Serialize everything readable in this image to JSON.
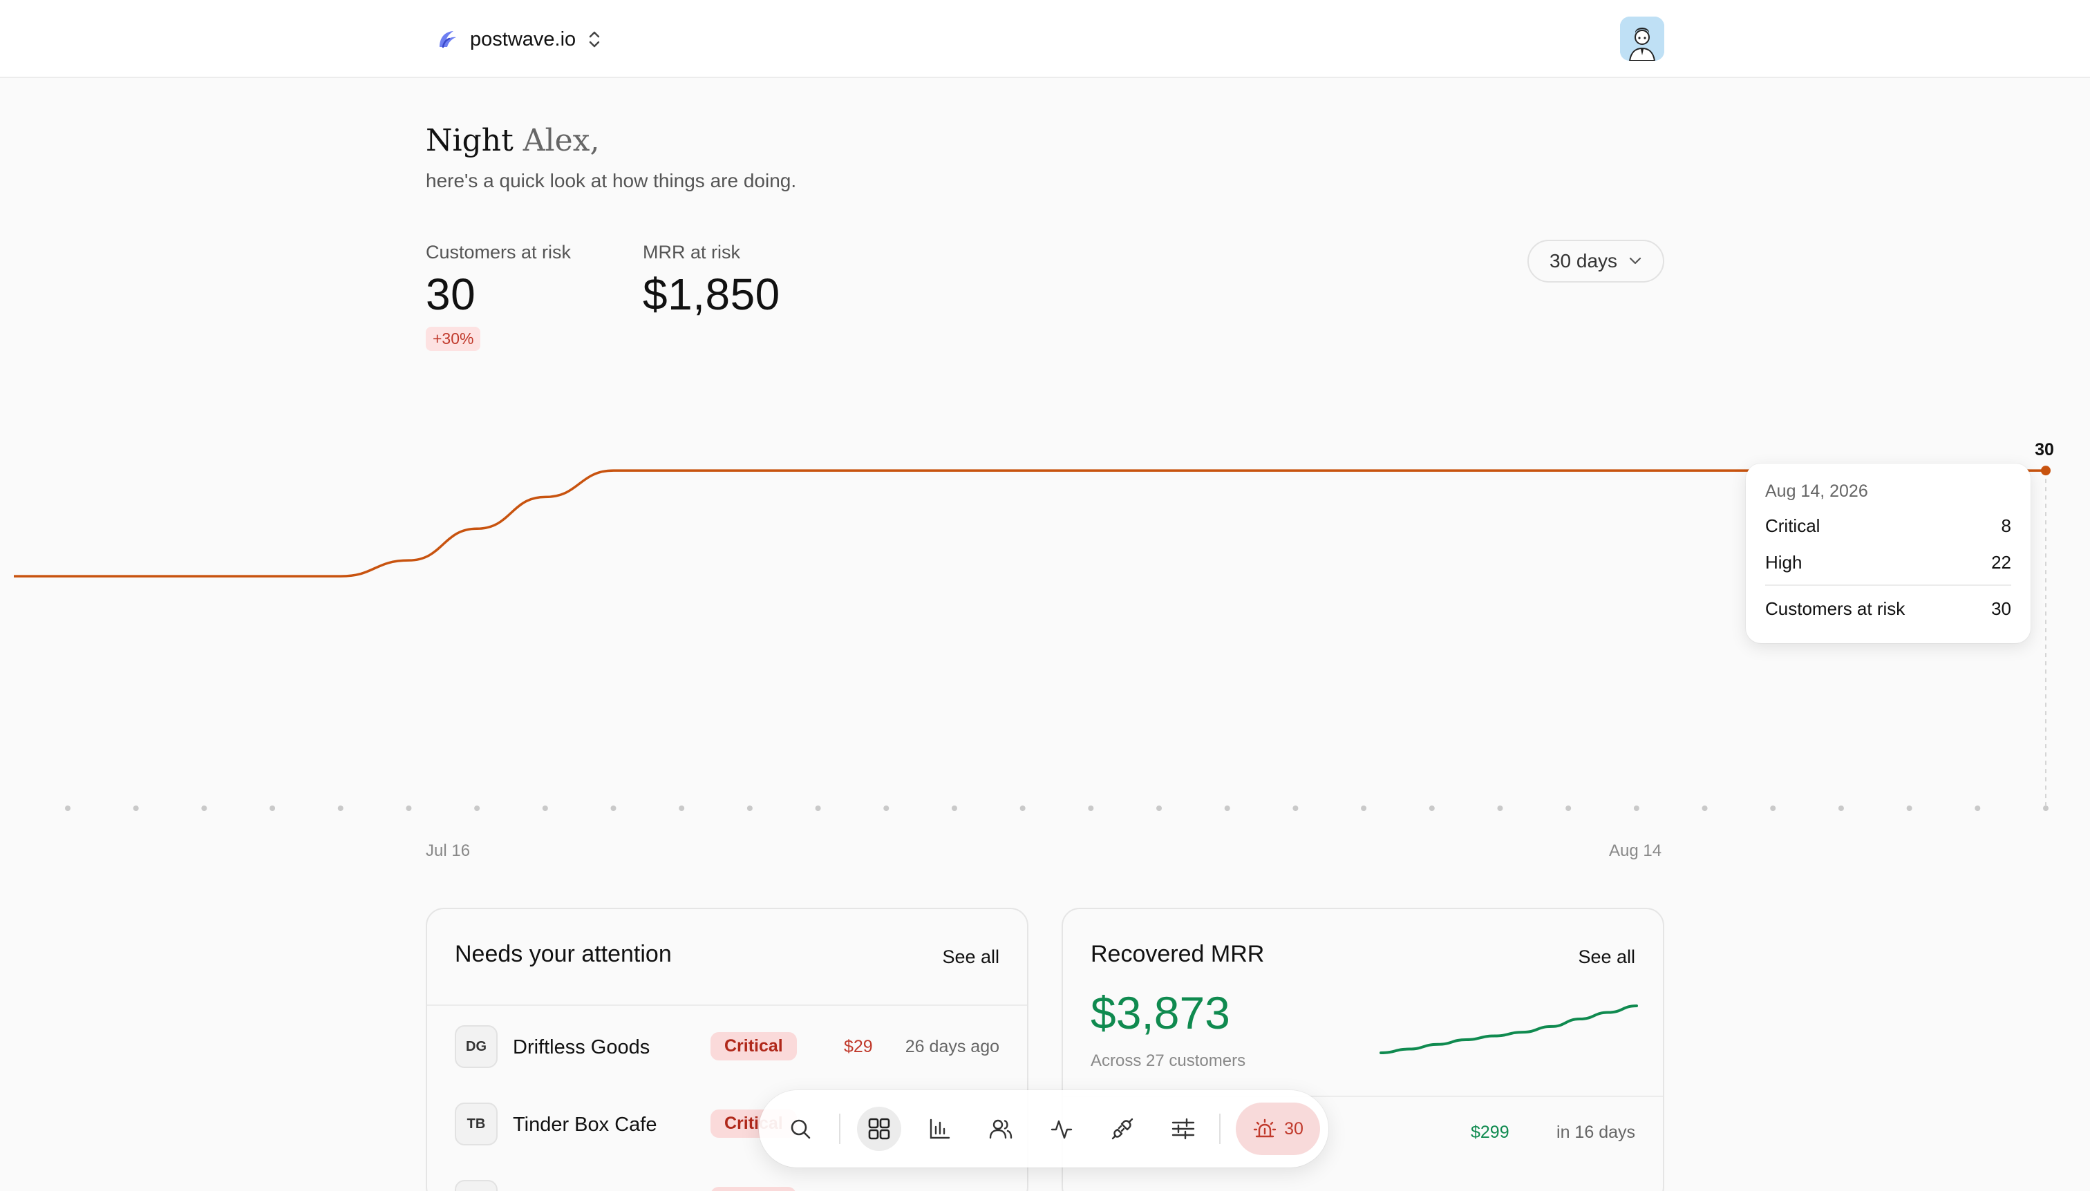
{
  "workspace": {
    "name": "postwave.io"
  },
  "greeting": {
    "prefix": "Night",
    "name": "Alex,",
    "subtitle": "here's a quick look at how things are doing."
  },
  "kpis": {
    "customers_at_risk": {
      "label": "Customers at risk",
      "value": "30",
      "change": "+30%"
    },
    "mrr_at_risk": {
      "label": "MRR at risk",
      "value": "$1,850"
    }
  },
  "range": {
    "selected": "30 days"
  },
  "chart_data": {
    "type": "line",
    "x": [
      "Jul 16",
      "Jul 17",
      "Jul 18",
      "Jul 19",
      "Jul 20",
      "Jul 21",
      "Jul 22",
      "Jul 23",
      "Jul 24",
      "Jul 25",
      "Jul 26",
      "Jul 27",
      "Jul 28",
      "Jul 29",
      "Jul 30",
      "Jul 31",
      "Aug 1",
      "Aug 2",
      "Aug 3",
      "Aug 4",
      "Aug 5",
      "Aug 6",
      "Aug 7",
      "Aug 8",
      "Aug 9",
      "Aug 10",
      "Aug 11",
      "Aug 12",
      "Aug 13",
      "Aug 14"
    ],
    "series": [
      {
        "values": [
          20,
          20,
          20,
          20,
          20,
          21.5,
          24.5,
          27.5,
          30,
          30,
          30,
          30,
          30,
          30,
          30,
          30,
          30,
          30,
          30,
          30,
          30,
          30,
          30,
          30,
          30,
          30,
          30,
          30,
          30,
          30
        ]
      }
    ],
    "ylim": [
      0,
      34
    ],
    "xtick_labels": [
      "Jul 16",
      "Aug 14"
    ],
    "end_label": "30",
    "color": "#c8530f",
    "tooltip": {
      "date": "Aug 14, 2026",
      "rows": [
        {
          "label": "Critical",
          "value": "8"
        },
        {
          "label": "High",
          "value": "22"
        }
      ],
      "total": {
        "label": "Customers at risk",
        "value": "30"
      }
    }
  },
  "attention": {
    "title": "Needs your attention",
    "see_all": "See all",
    "rows": [
      {
        "initials": "DG",
        "name": "Driftless Goods",
        "severity": "Critical",
        "amount": "$29",
        "time": "26 days ago"
      },
      {
        "initials": "TB",
        "name": "Tinder Box Cafe",
        "severity": "Critical",
        "amount": "",
        "time": ""
      }
    ]
  },
  "recovered": {
    "title": "Recovered MRR",
    "see_all": "See all",
    "value": "$3,873",
    "subtitle": "Across 27 customers",
    "sparkline": [
      0,
      0.08,
      0.18,
      0.28,
      0.36,
      0.44,
      0.56,
      0.72,
      0.86,
      1.0
    ],
    "color": "#0f8a4f",
    "row": {
      "amount": "$299",
      "time": "in 16 days"
    }
  },
  "dock": {
    "items": [
      "search-icon",
      "dashboard-icon",
      "bar-chart-icon",
      "users-icon",
      "activity-icon",
      "plug-icon",
      "sliders-icon"
    ],
    "alert_count": "30"
  }
}
